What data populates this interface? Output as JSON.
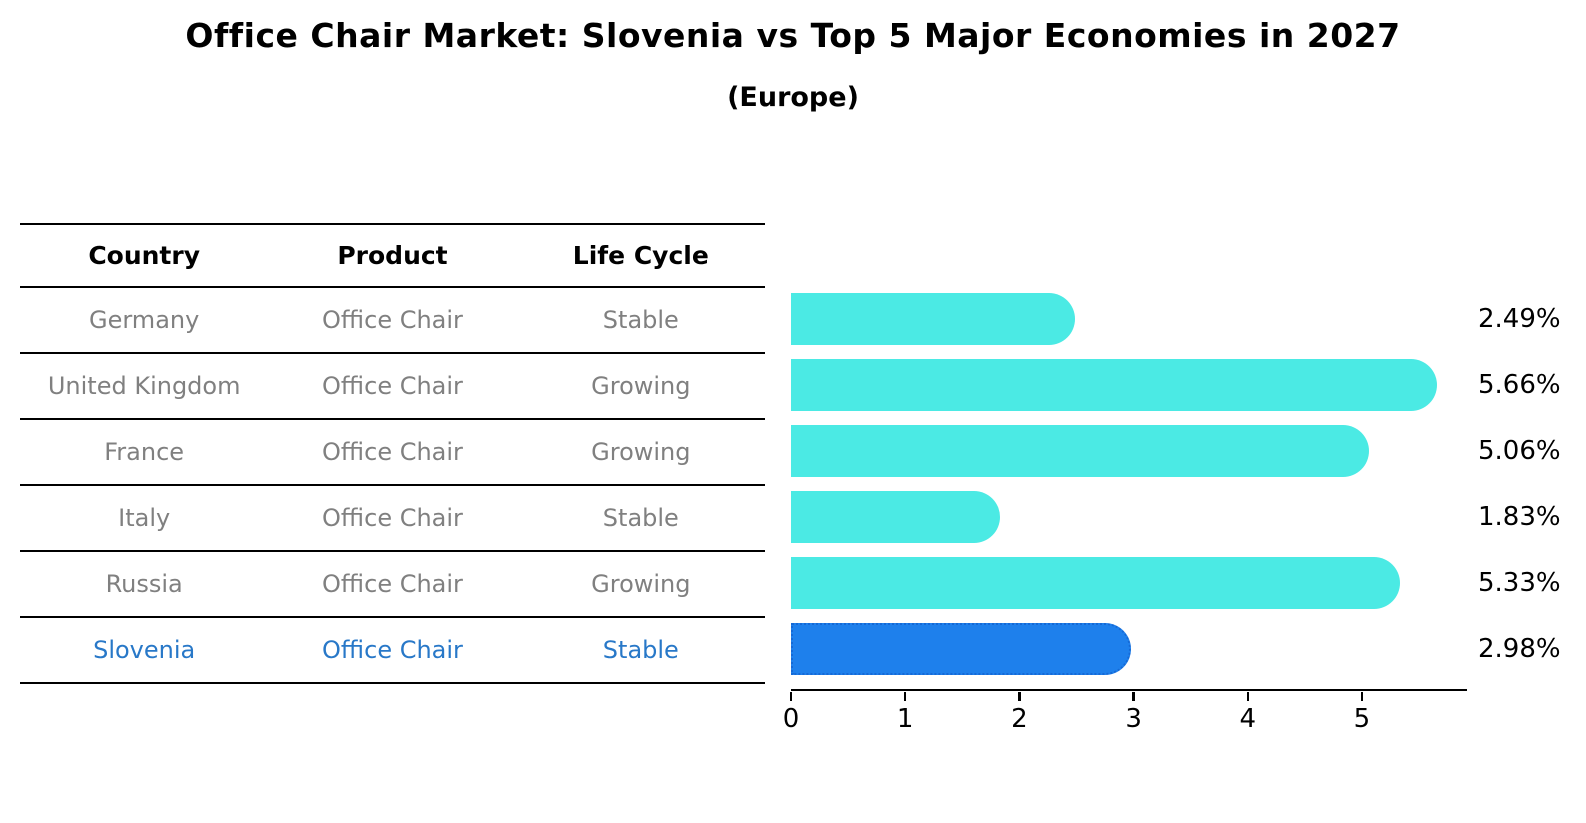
{
  "title": "Office Chair Market: Slovenia vs Top 5 Major Economies in 2027",
  "subtitle": "(Europe)",
  "table": {
    "headers": [
      "Country",
      "Product",
      "Life Cycle"
    ],
    "rows": [
      {
        "country": "Germany",
        "product": "Office Chair",
        "life_cycle": "Stable",
        "highlight": false
      },
      {
        "country": "United Kingdom",
        "product": "Office Chair",
        "life_cycle": "Growing",
        "highlight": false
      },
      {
        "country": "France",
        "product": "Office Chair",
        "life_cycle": "Growing",
        "highlight": false
      },
      {
        "country": "Italy",
        "product": "Office Chair",
        "life_cycle": "Stable",
        "highlight": false
      },
      {
        "country": "Russia",
        "product": "Office Chair",
        "life_cycle": "Growing",
        "highlight": false
      },
      {
        "country": "Slovenia",
        "product": "Office Chair",
        "life_cycle": "Stable",
        "highlight": true
      }
    ]
  },
  "chart_data": {
    "type": "bar",
    "orientation": "horizontal",
    "title": "Office Chair Market: Slovenia vs Top 5 Major Economies in 2027",
    "subtitle": "(Europe)",
    "categories": [
      "Germany",
      "United Kingdom",
      "France",
      "Italy",
      "Russia",
      "Slovenia"
    ],
    "values": [
      2.49,
      5.66,
      5.06,
      1.83,
      5.33,
      2.98
    ],
    "value_labels": [
      "2.49%",
      "5.66%",
      "5.06%",
      "1.83%",
      "5.33%",
      "2.98%"
    ],
    "unit": "%",
    "xlim": [
      0,
      5.92
    ],
    "x_ticks": [
      0,
      1,
      2,
      3,
      4,
      5
    ],
    "grid": false,
    "legend": false,
    "highlight_index": 5,
    "colors": {
      "bar": "#4beae4",
      "highlight_bar": "#1e80ec",
      "highlight_border": "#1569d6",
      "highlight_text": "#2878c8",
      "table_text": "#808080",
      "axis": "#000000"
    }
  }
}
